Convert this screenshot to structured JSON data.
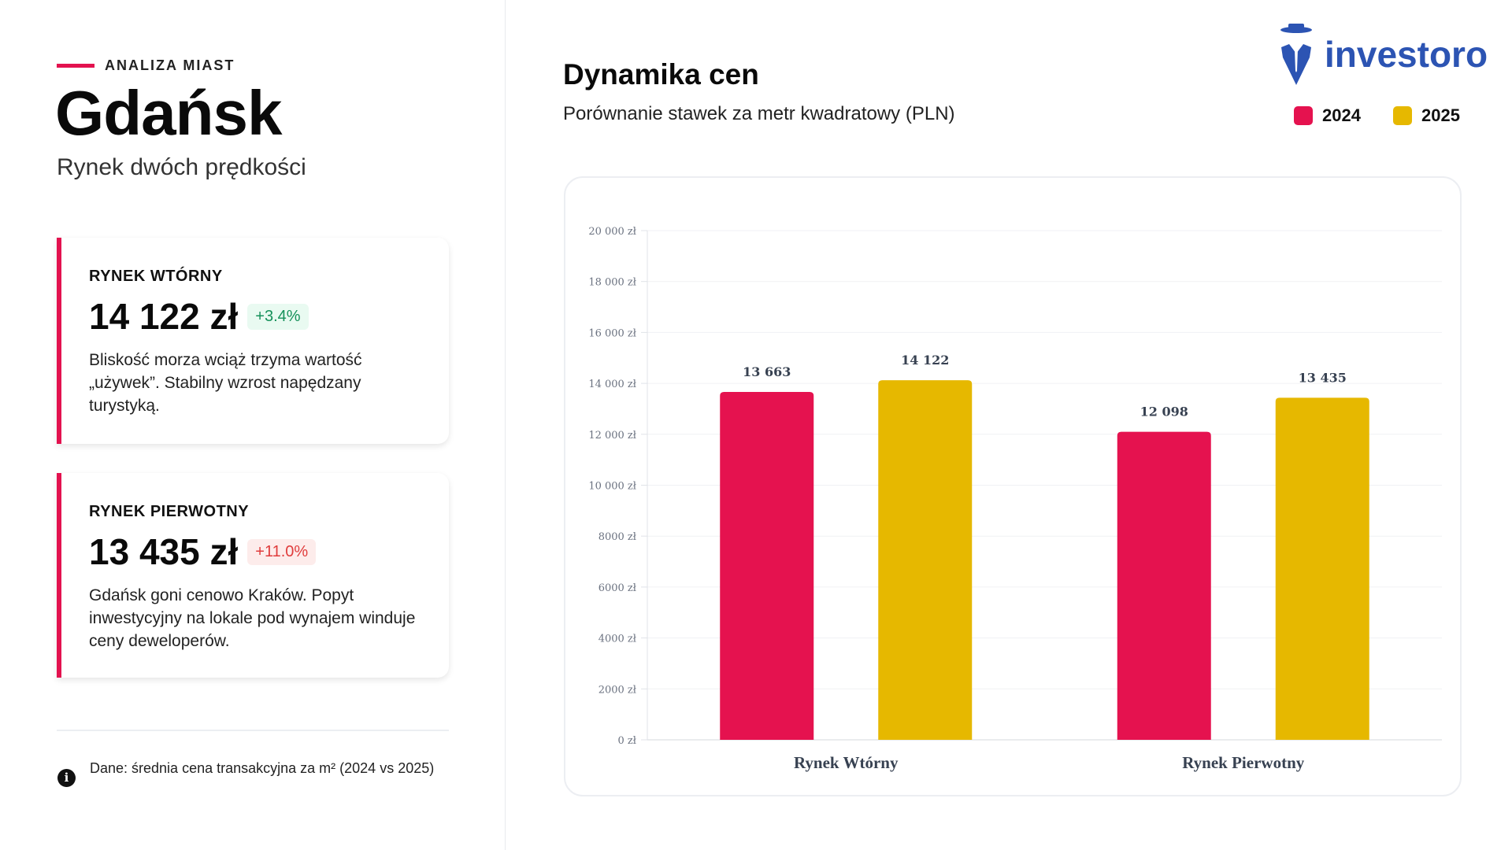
{
  "left": {
    "kicker": "ANALIZA MIAST",
    "city": "Gdańsk",
    "tagline": "Rynek dwóch prędkości",
    "cards": [
      {
        "label": "RYNEK WTÓRNY",
        "value": "14 122 zł",
        "change": "+3.4%",
        "change_color": "#16915a",
        "description": "Bliskość morza wciąż trzyma wartość „używek”. Stabilny wzrost napędzany turystyką."
      },
      {
        "label": "RYNEK PIERWOTNY",
        "value": "13 435 zł",
        "change": "+11.0%",
        "change_color": "#e03c3c",
        "description": "Gdańsk goni cenowo Kraków. Popyt inwestycyjny na lokale pod wynajem winduje ceny deweloperów."
      }
    ],
    "footnote": "Dane: średnia cena transakcyjna za m² (2024 vs 2025)",
    "footnote_icon": "info-icon"
  },
  "header": {
    "title": "Dynamika cen",
    "subtitle": "Porównanie stawek za metr kwadratowy (PLN)",
    "logo_text": "investoro"
  },
  "colors": {
    "accent": "#e3124f",
    "y2024": "#e5124f",
    "y2025": "#e6b800",
    "brand": "#2c54b3"
  },
  "chart_data": {
    "type": "bar",
    "title": "Dynamika cen",
    "subtitle": "Porównanie stawek za metr kwadratowy (PLN)",
    "categories": [
      "Rynek Wtórny",
      "Rynek Pierwotny"
    ],
    "series": [
      {
        "name": "2024",
        "color": "#e5124f",
        "values": [
          13663,
          12098
        ],
        "labels": [
          "13 663",
          "12 098"
        ]
      },
      {
        "name": "2025",
        "color": "#e6b800",
        "values": [
          14122,
          13435
        ],
        "labels": [
          "14 122",
          "13 435"
        ]
      }
    ],
    "ylim": [
      0,
      20000
    ],
    "yticks": [
      0,
      2000,
      4000,
      6000,
      8000,
      10000,
      12000,
      14000,
      16000,
      18000,
      20000
    ],
    "ytick_labels": [
      "0 zł",
      "2000 zł",
      "4000 zł",
      "6000 zł",
      "8000 zł",
      "10 000 zł",
      "12 000 zł",
      "14 000 zł",
      "16 000 zł",
      "18 000 zł",
      "20 000 zł"
    ],
    "grid": true,
    "legend": "top-right",
    "xlabel": "",
    "ylabel": ""
  }
}
